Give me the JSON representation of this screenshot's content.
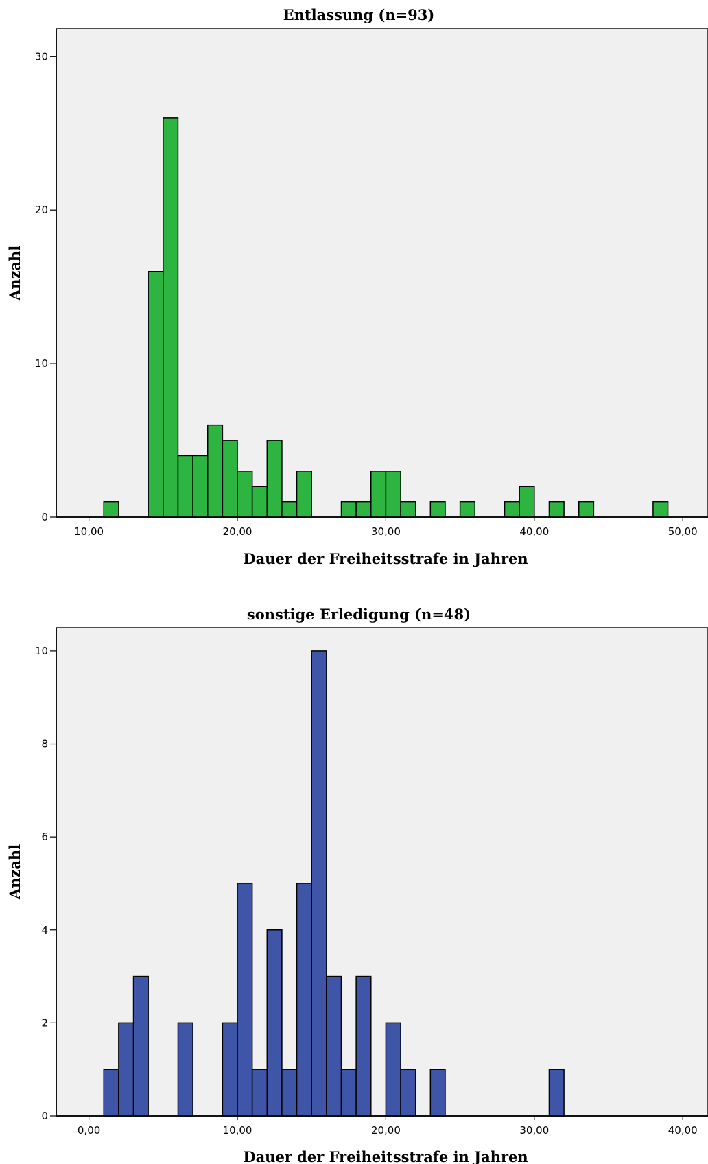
{
  "chart_data": [
    {
      "type": "bar",
      "title": "Entlassung (n=93)",
      "xlabel": "Dauer der Freiheitsstrafe in Jahren",
      "ylabel": "Anzahl",
      "bar_color": "#2db441",
      "xlim": [
        7.8,
        51.7
      ],
      "ylim": [
        0,
        31.8
      ],
      "bin_width": 1.0,
      "xticks": [
        10,
        20,
        30,
        40,
        50
      ],
      "xtick_labels": [
        "10,00",
        "20,00",
        "30,00",
        "40,00",
        "50,00"
      ],
      "yticks": [
        0,
        10,
        20,
        30
      ],
      "ytick_labels": [
        "0",
        "10",
        "20",
        "30"
      ],
      "grid": false,
      "bars": [
        {
          "x": 11.5,
          "y": 1
        },
        {
          "x": 14.5,
          "y": 16
        },
        {
          "x": 15.5,
          "y": 26
        },
        {
          "x": 16.5,
          "y": 4
        },
        {
          "x": 17.5,
          "y": 4
        },
        {
          "x": 18.5,
          "y": 6
        },
        {
          "x": 19.5,
          "y": 5
        },
        {
          "x": 20.5,
          "y": 3
        },
        {
          "x": 21.5,
          "y": 2
        },
        {
          "x": 22.5,
          "y": 5
        },
        {
          "x": 23.5,
          "y": 1
        },
        {
          "x": 24.5,
          "y": 3
        },
        {
          "x": 27.5,
          "y": 1
        },
        {
          "x": 28.5,
          "y": 1
        },
        {
          "x": 29.5,
          "y": 3
        },
        {
          "x": 30.5,
          "y": 3
        },
        {
          "x": 31.5,
          "y": 1
        },
        {
          "x": 33.5,
          "y": 1
        },
        {
          "x": 35.5,
          "y": 1
        },
        {
          "x": 38.5,
          "y": 1
        },
        {
          "x": 39.5,
          "y": 2
        },
        {
          "x": 41.5,
          "y": 1
        },
        {
          "x": 43.5,
          "y": 1
        },
        {
          "x": 48.5,
          "y": 1
        }
      ]
    },
    {
      "type": "bar",
      "title": "sonstige Erledigung (n=48)",
      "xlabel": "Dauer der Freiheitsstrafe in Jahren",
      "ylabel": "Anzahl",
      "bar_color": "#3f55a8",
      "xlim": [
        -2.2,
        41.7
      ],
      "ylim": [
        0,
        10.5
      ],
      "bin_width": 1.0,
      "xticks": [
        0,
        10,
        20,
        30,
        40
      ],
      "xtick_labels": [
        "0,00",
        "10,00",
        "20,00",
        "30,00",
        "40,00"
      ],
      "yticks": [
        0,
        2,
        4,
        6,
        8,
        10
      ],
      "ytick_labels": [
        "0",
        "2",
        "4",
        "6",
        "8",
        "10"
      ],
      "grid": false,
      "bars": [
        {
          "x": 1.5,
          "y": 1
        },
        {
          "x": 2.5,
          "y": 2
        },
        {
          "x": 3.5,
          "y": 3
        },
        {
          "x": 6.5,
          "y": 2
        },
        {
          "x": 9.5,
          "y": 2
        },
        {
          "x": 10.5,
          "y": 5
        },
        {
          "x": 11.5,
          "y": 1
        },
        {
          "x": 12.5,
          "y": 4
        },
        {
          "x": 13.5,
          "y": 1
        },
        {
          "x": 14.5,
          "y": 5
        },
        {
          "x": 15.5,
          "y": 10
        },
        {
          "x": 16.5,
          "y": 3
        },
        {
          "x": 17.5,
          "y": 1
        },
        {
          "x": 18.5,
          "y": 3
        },
        {
          "x": 20.5,
          "y": 2
        },
        {
          "x": 21.5,
          "y": 1
        },
        {
          "x": 23.5,
          "y": 1
        },
        {
          "x": 31.5,
          "y": 1
        }
      ]
    }
  ]
}
